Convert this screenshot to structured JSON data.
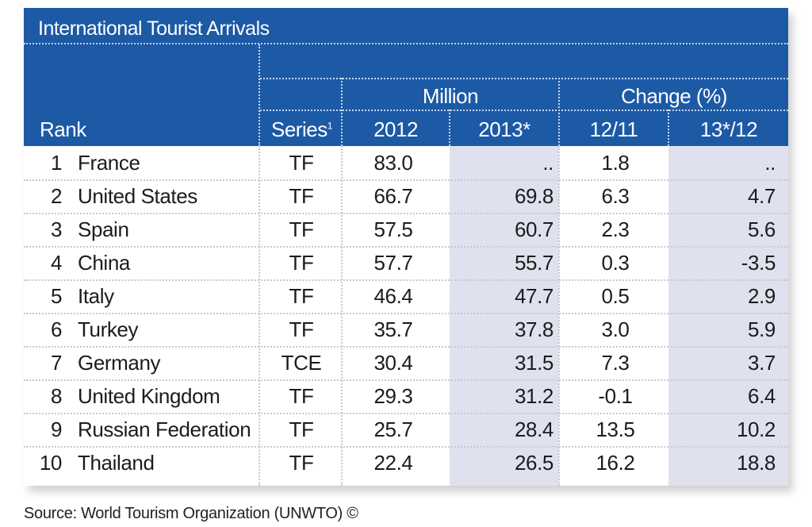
{
  "title": "International Tourist Arrivals",
  "header": {
    "rank": "Rank",
    "series": "Series",
    "series_sup": "1",
    "million": "Million",
    "change": "Change (%)",
    "y2012": "2012",
    "y2013": "2013*",
    "ch1211": "12/11",
    "ch1312": "13*/12"
  },
  "rows": [
    {
      "rank": "1",
      "country": "France",
      "series": "TF",
      "v2012": "83.0",
      "v2013": "..",
      "ch1": "1.8",
      "ch2": ".."
    },
    {
      "rank": "2",
      "country": "United States",
      "series": "TF",
      "v2012": "66.7",
      "v2013": "69.8",
      "ch1": "6.3",
      "ch2": "4.7"
    },
    {
      "rank": "3",
      "country": "Spain",
      "series": "TF",
      "v2012": "57.5",
      "v2013": "60.7",
      "ch1": "2.3",
      "ch2": "5.6"
    },
    {
      "rank": "4",
      "country": "China",
      "series": "TF",
      "v2012": "57.7",
      "v2013": "55.7",
      "ch1": "0.3",
      "ch2": "-3.5"
    },
    {
      "rank": "5",
      "country": "Italy",
      "series": "TF",
      "v2012": "46.4",
      "v2013": "47.7",
      "ch1": "0.5",
      "ch2": "2.9"
    },
    {
      "rank": "6",
      "country": "Turkey",
      "series": "TF",
      "v2012": "35.7",
      "v2013": "37.8",
      "ch1": "3.0",
      "ch2": "5.9"
    },
    {
      "rank": "7",
      "country": "Germany",
      "series": "TCE",
      "v2012": "30.4",
      "v2013": "31.5",
      "ch1": "7.3",
      "ch2": "3.7"
    },
    {
      "rank": "8",
      "country": "United Kingdom",
      "series": "TF",
      "v2012": "29.3",
      "v2013": "31.2",
      "ch1": "-0.1",
      "ch2": "6.4"
    },
    {
      "rank": "9",
      "country": "Russian Federation",
      "series": "TF",
      "v2012": "25.7",
      "v2013": "28.4",
      "ch1": "13.5",
      "ch2": "10.2"
    },
    {
      "rank": "10",
      "country": "Thailand",
      "series": "TF",
      "v2012": "22.4",
      "v2013": "26.5",
      "ch1": "16.2",
      "ch2": "18.8"
    }
  ],
  "source": "Source: World Tourism Organization (UNWTO) ©",
  "colors": {
    "header_bg": "#1d5aa6",
    "shaded_column": "#dfe2ee",
    "text": "#1c1c1c"
  }
}
